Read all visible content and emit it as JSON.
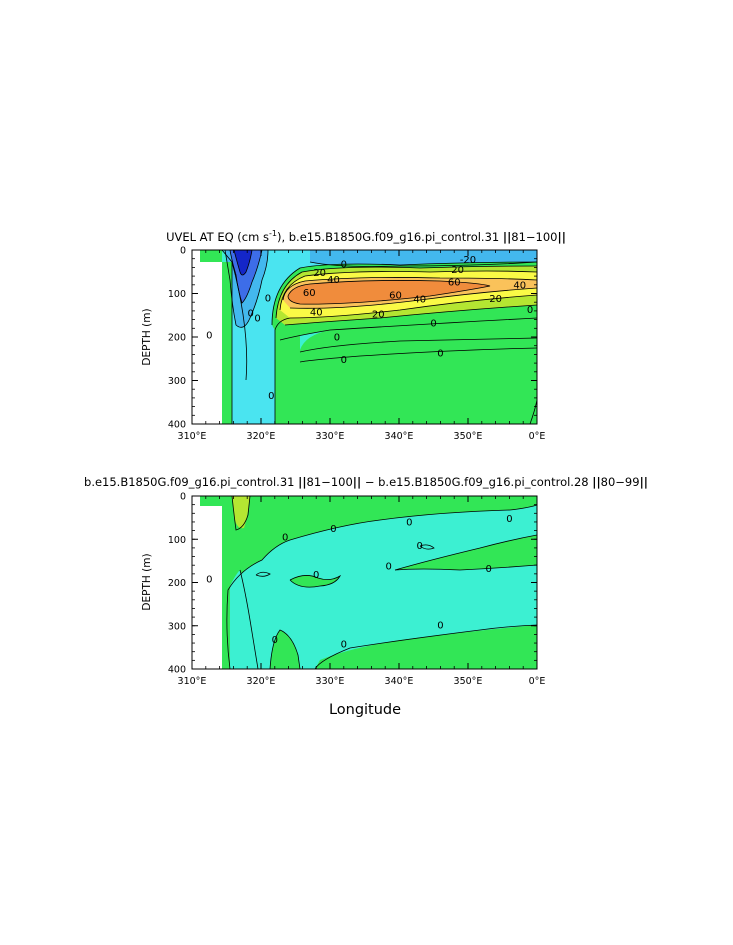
{
  "chart_data": [
    {
      "type": "contour",
      "title_parts": [
        "UVEL AT EQ (cm s",
        "-1",
        "), b.e15.B1850G.f09_g16.pi_control.31  ",
        "||",
        "81−100",
        "||"
      ],
      "ylabel": "DEPTH (m)",
      "xlabel": "",
      "xlim": [
        310,
        360
      ],
      "ylim": [
        400,
        0
      ],
      "xticks": [
        "310°E",
        "320°E",
        "330°E",
        "340°E",
        "350°E",
        "0°E"
      ],
      "yticks": [
        "0",
        "100",
        "200",
        "300",
        "400"
      ],
      "contour_labels": [
        {
          "text": "-20",
          "lon": 350,
          "depth": 22
        },
        {
          "text": "0",
          "lon": 332,
          "depth": 32
        },
        {
          "text": "20",
          "lon": 328.5,
          "depth": 52
        },
        {
          "text": "40",
          "lon": 330.5,
          "depth": 68
        },
        {
          "text": "20",
          "lon": 348.5,
          "depth": 45
        },
        {
          "text": "60",
          "lon": 348,
          "depth": 73
        },
        {
          "text": "40",
          "lon": 357.5,
          "depth": 80
        },
        {
          "text": "60",
          "lon": 327,
          "depth": 98
        },
        {
          "text": "60",
          "lon": 339.5,
          "depth": 103
        },
        {
          "text": "40",
          "lon": 343,
          "depth": 113
        },
        {
          "text": "20",
          "lon": 354,
          "depth": 112
        },
        {
          "text": "40",
          "lon": 328,
          "depth": 143
        },
        {
          "text": "20",
          "lon": 337,
          "depth": 147
        },
        {
          "text": "0",
          "lon": 359,
          "depth": 137
        },
        {
          "text": "0",
          "lon": 345,
          "depth": 168
        },
        {
          "text": "0",
          "lon": 331,
          "depth": 200
        },
        {
          "text": "0",
          "lon": 312.5,
          "depth": 195
        },
        {
          "text": "0",
          "lon": 332,
          "depth": 252
        },
        {
          "text": "0",
          "lon": 346,
          "depth": 237
        },
        {
          "text": "0",
          "lon": 321.5,
          "depth": 335
        },
        {
          "text": "0",
          "lon": 321,
          "depth": 110
        },
        {
          "text": "0",
          "lon": 318.5,
          "depth": 145
        },
        {
          "text": "0",
          "lon": 319.5,
          "depth": 156
        }
      ]
    },
    {
      "type": "contour",
      "title_parts": [
        "b.e15.B1850G.f09_g16.pi_control.31  ",
        "||",
        "81−100",
        "||",
        "  −  b.e15.B1850G.f09_g16.pi_control.28  ",
        "||",
        "80−99",
        "||"
      ],
      "ylabel": "DEPTH (m)",
      "xlabel": "Longitude",
      "xlim": [
        310,
        360
      ],
      "ylim": [
        400,
        0
      ],
      "xticks": [
        "310°E",
        "320°E",
        "330°E",
        "340°E",
        "350°E",
        "0°E"
      ],
      "yticks": [
        "0",
        "100",
        "200",
        "300",
        "400"
      ],
      "contour_labels": [
        {
          "text": "0",
          "lon": 341.5,
          "depth": 60
        },
        {
          "text": "0",
          "lon": 356,
          "depth": 52
        },
        {
          "text": "0",
          "lon": 330.5,
          "depth": 75
        },
        {
          "text": "0",
          "lon": 323.5,
          "depth": 95
        },
        {
          "text": "0",
          "lon": 343,
          "depth": 115
        },
        {
          "text": "0",
          "lon": 338.5,
          "depth": 162
        },
        {
          "text": "0",
          "lon": 353,
          "depth": 168
        },
        {
          "text": "0",
          "lon": 328,
          "depth": 182
        },
        {
          "text": "0",
          "lon": 312.5,
          "depth": 192
        },
        {
          "text": "0",
          "lon": 346,
          "depth": 298
        },
        {
          "text": "0",
          "lon": 322,
          "depth": 332
        },
        {
          "text": "0",
          "lon": 332,
          "depth": 342
        }
      ]
    }
  ],
  "colors": {
    "dark_blue": "#1426c8",
    "blue": "#3d6de8",
    "light_blue": "#43b8ee",
    "cyan": "#4ae4f0",
    "aqua": "#3cf0d2",
    "green": "#32e656",
    "yellow_green": "#b4e632",
    "yellow": "#fafa46",
    "light_orange": "#fac25a",
    "orange": "#f08c3c",
    "land": "#ffffff"
  }
}
